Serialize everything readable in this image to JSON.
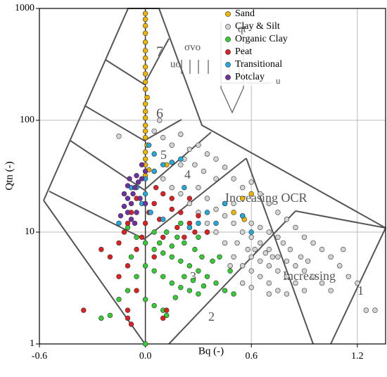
{
  "chart_data": {
    "type": "scatter",
    "xlabel": "Bq (-)",
    "ylabel": "Qtn (-)",
    "xlim": [
      -0.6,
      1.36
    ],
    "ylim": [
      1,
      1000
    ],
    "log_y": true,
    "grid": true,
    "legend": "upper right",
    "xticks": [
      -0.6,
      {
        "value": 0,
        "label": "0.0"
      },
      0.6,
      1.2
    ],
    "yticks": [
      1,
      10,
      100,
      1000
    ],
    "annotations": [
      "7",
      "6",
      "5",
      "4",
      "3",
      "2",
      "1",
      "Increasing OCR",
      "Increasing",
      "σvo",
      "uo",
      "qt",
      "u"
    ],
    "series": [
      {
        "name": "Sand",
        "color": "#f0b400",
        "x": [
          0.0,
          0.0,
          0.0,
          0.0,
          0.0,
          0.0,
          0.0,
          0.0,
          0.0,
          0.0,
          0.0,
          0.01,
          0.0,
          0.0,
          0.0,
          0.0,
          0.0,
          0.0,
          0.01,
          0.0,
          0.0,
          0.0,
          0.02,
          0.0,
          0.15,
          0.12,
          0.55,
          0.45,
          0.56,
          0.6,
          0.5
        ],
        "values": [
          900,
          800,
          700,
          600,
          500,
          420,
          360,
          300,
          260,
          220,
          190,
          160,
          140,
          120,
          105,
          90,
          80,
          70,
          60,
          52,
          45,
          40,
          36,
          32,
          42,
          40,
          20,
          18,
          13,
          22,
          15
        ]
      },
      {
        "name": "Clay & Silt",
        "color": "#d4d4d4",
        "x": [
          0.05,
          0.1,
          0.15,
          0.2,
          0.25,
          0.3,
          0.35,
          0.4,
          0.22,
          0.28,
          0.33,
          0.4,
          0.45,
          0.5,
          0.55,
          0.6,
          0.65,
          0.7,
          0.75,
          0.8,
          0.85,
          0.9,
          0.95,
          1.0,
          1.05,
          1.1,
          1.15,
          1.2,
          1.25,
          0.5,
          0.55,
          0.6,
          0.65,
          0.7,
          0.75,
          0.8,
          0.85,
          0.9,
          0.95,
          1.0,
          1.05,
          0.5,
          0.55,
          0.6,
          0.65,
          0.7,
          0.75,
          0.8,
          0.6,
          0.65,
          0.7,
          0.75,
          0.8,
          0.85,
          0.9,
          0.62,
          0.68,
          0.72,
          0.78,
          0.82,
          0.88,
          0.92,
          0.45,
          0.4,
          0.35,
          0.3,
          0.25,
          0.2,
          0.15,
          0.1,
          0.05,
          0.3,
          0.35,
          0.4,
          0.45,
          0.5,
          0.55,
          0.6,
          0.65,
          0.7,
          0.75,
          -0.15,
          0.08,
          0.2,
          0.52,
          0.58,
          0.48,
          0.55,
          0.6,
          0.7,
          1.12,
          1.3
        ],
        "values": [
          80,
          70,
          60,
          75,
          55,
          60,
          50,
          45,
          45,
          40,
          35,
          30,
          38,
          30,
          25,
          28,
          22,
          18,
          15,
          13,
          11,
          9,
          8,
          7,
          6,
          5,
          4,
          3.5,
          2,
          12,
          10,
          9,
          8,
          7,
          6,
          5.5,
          5,
          4.5,
          4,
          3.5,
          3,
          6,
          5,
          4.5,
          4,
          3.5,
          3,
          2.8,
          6,
          5.5,
          5,
          4.5,
          4,
          3.5,
          3,
          7,
          6.5,
          6,
          8,
          7,
          6,
          5.5,
          8,
          10,
          12,
          15,
          18,
          22,
          25,
          30,
          35,
          25,
          20,
          16,
          14,
          18,
          14,
          12,
          11,
          10,
          9,
          72,
          100,
          40,
          8,
          7,
          5,
          3.5,
          3.2,
          2.8,
          7,
          2
        ]
      },
      {
        "name": "Organic Clay",
        "color": "#33cc33",
        "x": [
          -0.1,
          -0.05,
          0.0,
          0.05,
          0.1,
          0.15,
          0.2,
          0.25,
          0.3,
          0.35,
          0.4,
          0.45,
          0.5,
          0.0,
          0.05,
          0.1,
          0.15,
          0.2,
          0.25,
          0.3,
          -0.05,
          -0.1,
          -0.15,
          -0.2,
          -0.25,
          0.0,
          0.05,
          0.1,
          0.12,
          0.08,
          0.12,
          0.18,
          0.22,
          0.28,
          0.32,
          0.38,
          0.42,
          0.48,
          0.3,
          0.35,
          0.2,
          0.25,
          0.0,
          0.15,
          0.05,
          -0.08,
          0.22,
          0.27,
          0.33,
          0.17
        ],
        "values": [
          11,
          9,
          8,
          7,
          6.5,
          6,
          5.5,
          5,
          4.5,
          4,
          3.5,
          3,
          2.8,
          5,
          4.5,
          4,
          3.5,
          3.2,
          3,
          2.8,
          4,
          3,
          2.5,
          1.8,
          1.7,
          2.5,
          2.2,
          2,
          1.8,
          8,
          10,
          9,
          8,
          7,
          6,
          5.5,
          6,
          4.5,
          9,
          10,
          12,
          11,
          1,
          7.5,
          10,
          6,
          4,
          3.7,
          3.3,
          2.6
        ]
      },
      {
        "name": "Peat",
        "color": "#e02020",
        "x": [
          -0.05,
          -0.08,
          -0.1,
          -0.12,
          -0.15,
          -0.05,
          0.0,
          0.05,
          0.1,
          0.15,
          0.2,
          0.25,
          0.3,
          0.35,
          0.1,
          0.05,
          -0.1,
          -0.2,
          -0.25,
          -0.15,
          -0.1,
          -0.1,
          -0.08,
          -0.35,
          -0.05,
          0.1,
          0.12,
          0.02,
          0.08,
          0.18,
          0.22,
          0.28,
          -0.02,
          0.15,
          0.25,
          0.06
        ],
        "values": [
          20,
          15,
          12,
          10,
          8,
          7,
          12,
          18,
          22,
          20,
          15,
          12,
          14,
          10,
          9,
          6,
          5,
          6,
          7,
          4,
          2,
          1.7,
          1.5,
          2,
          3,
          1.7,
          2,
          15,
          13,
          11,
          9,
          10,
          9,
          16,
          20,
          25
        ]
      },
      {
        "name": "Transitional",
        "color": "#22aadd",
        "x": [
          -0.05,
          0.0,
          0.05,
          0.1,
          0.15,
          0.2,
          0.0,
          -0.02,
          0.03,
          0.1,
          -0.08,
          0.05,
          0.22,
          0.3,
          0.35,
          0.45,
          0.55,
          0.6,
          -0.15,
          0.4,
          0.25,
          0.02
        ],
        "values": [
          25,
          30,
          35,
          40,
          42,
          45,
          22,
          18,
          15,
          13,
          25,
          50,
          25,
          12,
          15,
          18,
          14,
          10,
          12,
          12,
          11,
          60
        ]
      },
      {
        "name": "Potclay",
        "color": "#7030a0",
        "x": [
          -0.05,
          -0.08,
          -0.1,
          -0.12,
          -0.06,
          -0.04,
          -0.02,
          0.0,
          -0.08,
          -0.1,
          -0.12,
          -0.14,
          -0.07,
          -0.03,
          -0.05,
          -0.1,
          -0.06,
          0.0,
          -0.02,
          -0.09
        ],
        "values": [
          15,
          18,
          20,
          22,
          25,
          28,
          30,
          35,
          13,
          15,
          17,
          14,
          22,
          20,
          32,
          26,
          12,
          18,
          40,
          30
        ]
      }
    ]
  }
}
